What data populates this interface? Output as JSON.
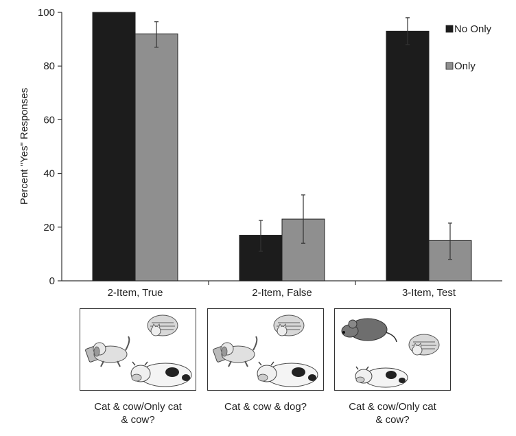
{
  "chart_data": {
    "type": "bar",
    "title": "",
    "xlabel": "",
    "ylabel": "Percent \"Yes\" Responses",
    "ylim": [
      0,
      100
    ],
    "yticks": [
      0,
      20,
      40,
      60,
      80,
      100
    ],
    "categories": [
      "2-Item, True",
      "2-Item, False",
      "3-Item, Test"
    ],
    "series": [
      {
        "name": "No Only",
        "color": "#1c1c1c",
        "values": [
          100,
          17,
          93
        ],
        "err_low": [
          100,
          11,
          88
        ],
        "err_high": [
          100,
          22.5,
          98
        ]
      },
      {
        "name": "Only",
        "color": "#8f8f8f",
        "values": [
          92,
          23,
          15
        ],
        "err_low": [
          87,
          14,
          8
        ],
        "err_high": [
          96.5,
          32,
          21.5
        ]
      }
    ],
    "legend_position": "top-right",
    "grid": false
  },
  "panels": [
    {
      "caption_line1": "Cat & cow/Only cat",
      "caption_line2": "& cow?",
      "icons": [
        "dog-icon",
        "cat-icon",
        "cow-icon"
      ]
    },
    {
      "caption_line1": "Cat & cow & dog?",
      "caption_line2": "",
      "icons": [
        "dog-icon",
        "cat-icon",
        "cow-icon"
      ]
    },
    {
      "caption_line1": "Cat & cow/Only cat",
      "caption_line2": "& cow?",
      "icons": [
        "mouse-icon",
        "cat-icon",
        "cow-icon"
      ]
    }
  ]
}
